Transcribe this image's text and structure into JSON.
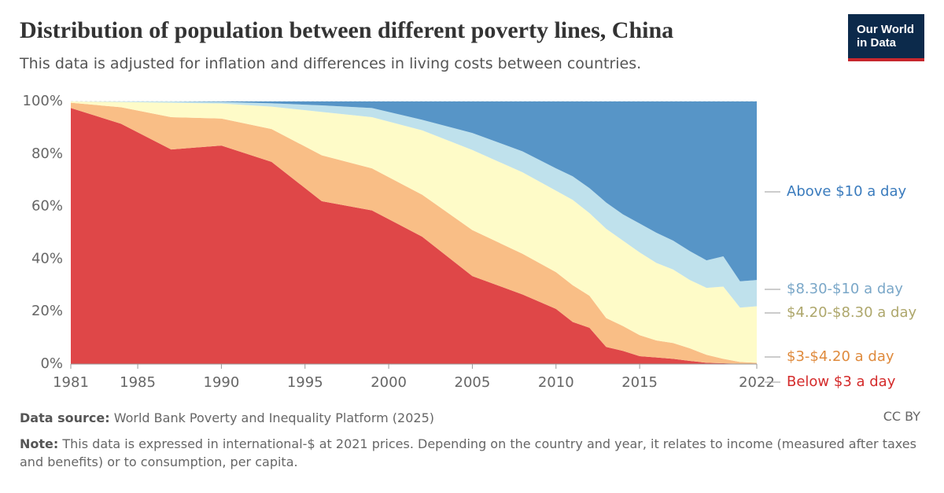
{
  "chart_data": {
    "type": "stacked_area",
    "title": "Distribution of population between different poverty lines, China",
    "subtitle": "This data is adjusted for inflation and differences in living costs between countries.",
    "logo": "Our World in Data",
    "license": "CC BY",
    "source_label": "Data source:",
    "source": "World Bank Poverty and Inequality Platform (2025)",
    "note_label": "Note:",
    "note": "This data is expressed in international-$ at 2021 prices. Depending on the country and year, it relates to income (measured after taxes and benefits) or to consumption, per capita.",
    "x": [
      1981,
      1984,
      1987,
      1990,
      1993,
      1996,
      1999,
      2002,
      2005,
      2008,
      2010,
      2011,
      2012,
      2013,
      2014,
      2015,
      2016,
      2017,
      2018,
      2019,
      2020,
      2021,
      2022
    ],
    "xlim": [
      1981,
      2022
    ],
    "xticks": [
      1981,
      1985,
      1990,
      1995,
      2000,
      2005,
      2010,
      2015,
      2022
    ],
    "ylim": [
      0,
      100
    ],
    "yticks": [
      {
        "value": 0,
        "label": "0%"
      },
      {
        "value": 20,
        "label": "20%"
      },
      {
        "value": 40,
        "label": "40%"
      },
      {
        "value": 60,
        "label": "60%"
      },
      {
        "value": 80,
        "label": "80%"
      },
      {
        "value": 100,
        "label": "100%"
      }
    ],
    "grid": true,
    "series": [
      {
        "name": "Below $3 a day",
        "color": "#df4748",
        "label_color": "#d42b2b",
        "values": [
          97.5,
          91.5,
          81.7,
          83.2,
          77,
          62,
          58.5,
          48.5,
          33.5,
          26.5,
          21,
          16,
          13.8,
          6.5,
          5,
          3,
          2.5,
          2,
          1.2,
          0.5,
          0.3,
          0.1,
          0.1
        ]
      },
      {
        "name": "$3-$4.20 a day",
        "color": "#f9be86",
        "label_color": "#df8a3c",
        "values": [
          2,
          6.3,
          12.3,
          10.3,
          12.5,
          17.5,
          16,
          16,
          17.5,
          15.5,
          14,
          14,
          12.2,
          11,
          9.5,
          8,
          6.5,
          6,
          4.8,
          3,
          1.7,
          0.7,
          0.4
        ]
      },
      {
        "name": "$4.20-$8.30 a day",
        "color": "#fefbc8",
        "label_color": "#aea76c",
        "values": [
          0.5,
          2,
          5.5,
          5.7,
          8.5,
          16.5,
          19.5,
          24.5,
          30.5,
          31,
          31,
          32.5,
          31.5,
          34,
          32.5,
          31.5,
          29.5,
          28,
          26,
          25.5,
          27.5,
          20.7,
          21.5
        ]
      },
      {
        "name": "$8.30-$10 a day",
        "color": "#bfe1ec",
        "label_color": "#7aa7c8",
        "values": [
          0,
          0.2,
          0.5,
          0.6,
          1.3,
          2.5,
          3.5,
          4,
          6.5,
          8,
          8.5,
          9,
          9.5,
          10,
          10,
          11,
          11.5,
          11,
          11,
          10.5,
          11.5,
          10,
          10
        ]
      },
      {
        "name": "Above $10 a day",
        "color": "#5795c7",
        "label_color": "#3a7bbd",
        "values": [
          0,
          0,
          0,
          0.2,
          0.7,
          1.5,
          2.5,
          7,
          12,
          19,
          25.5,
          28.5,
          33,
          38.5,
          43,
          46.5,
          50,
          53,
          57,
          60.5,
          59,
          68.5,
          68
        ]
      }
    ]
  }
}
